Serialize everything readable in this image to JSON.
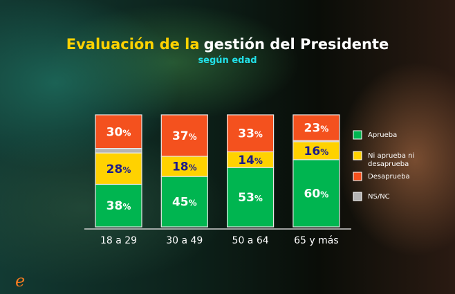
{
  "chart_data": {
    "type": "bar",
    "stacked": true,
    "title_part1": "Evaluación de la",
    "title_part2": "gestión del Presidente",
    "subtitle": "según edad",
    "categories": [
      "18 a 29",
      "30 a 49",
      "50 a 64",
      "65 y más"
    ],
    "series": [
      {
        "name": "Aprueba",
        "color": "#00b550",
        "label_color": "#ffffff",
        "values": [
          38,
          45,
          53,
          60
        ]
      },
      {
        "name": "Ni aprueba ni desaprueba",
        "color": "#ffd200",
        "label_color": "#1a1a8c",
        "values": [
          28,
          18,
          14,
          16
        ]
      },
      {
        "name": "NS/NC",
        "color": "#b4b4b4",
        "label_color": "#ffffff",
        "values": [
          4,
          0,
          0,
          1
        ],
        "labels_shown": false
      },
      {
        "name": "Desaprueba",
        "color": "#f4511e",
        "label_color": "#ffffff",
        "values": [
          30,
          37,
          33,
          23
        ]
      }
    ],
    "legend_order": [
      "Aprueba",
      "Ni aprueba ni desaprueba",
      "Desaprueba",
      "NS/NC"
    ],
    "legend_placement": "right",
    "unit": "%",
    "ylim": [
      0,
      100
    ],
    "grid": false
  },
  "colors": {
    "title_accent": "#ffd200",
    "title_main": "#ffffff",
    "subtitle": "#22e0e8",
    "logo": "#f47a20"
  },
  "logo": {
    "letter": "e"
  }
}
